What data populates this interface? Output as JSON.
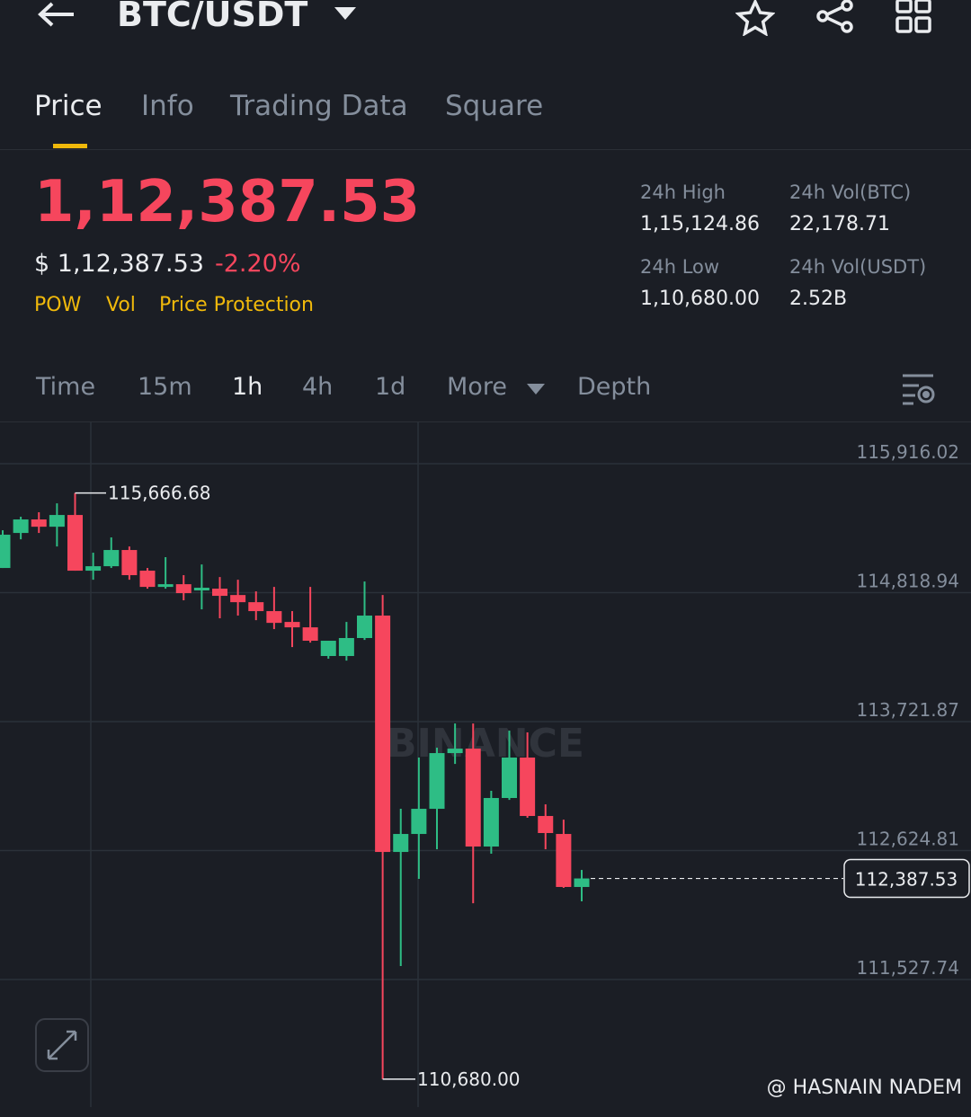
{
  "header": {
    "title": "BTC/USDT"
  },
  "tabs": [
    "Price",
    "Info",
    "Trading Data",
    "Square"
  ],
  "price": {
    "last": "1,12,387.53",
    "usd": "$ 1,12,387.53",
    "change": "-2.20%"
  },
  "tags": [
    "POW",
    "Vol",
    "Price Protection"
  ],
  "stats": [
    {
      "label": "24h High",
      "value": "1,15,124.86"
    },
    {
      "label": "24h Vol(BTC)",
      "value": "22,178.71"
    },
    {
      "label": "24h Low",
      "value": "1,10,680.00"
    },
    {
      "label": "24h Vol(USDT)",
      "value": "2.52B"
    }
  ],
  "intervals": [
    "Time",
    "15m",
    "1h",
    "4h",
    "1d",
    "More",
    "Depth"
  ],
  "chart_data": {
    "type": "candlestick",
    "open": [
      115029,
      115327,
      115442,
      115380,
      115480,
      115006,
      115044,
      115182,
      115006,
      114868,
      114891,
      114838,
      114853,
      114799,
      114738,
      114662,
      114570,
      114524,
      114280,
      114280,
      114433,
      114624,
      112613,
      112766,
      112980,
      113454,
      113492,
      112659,
      113072,
      113416,
      112919,
      112766,
      112315
    ],
    "high": [
      115350,
      115465,
      115503,
      115579,
      115666.68,
      115159,
      115289,
      115212,
      115029,
      115121,
      114968,
      115059,
      114952,
      114929,
      114830,
      114868,
      114662,
      114868,
      114410,
      114570,
      114914,
      114799,
      112980,
      113416,
      113500,
      113706,
      113706,
      113133,
      113645,
      113630,
      113018,
      112888,
      112460
    ],
    "low": [
      115029,
      115273,
      115327,
      115212,
      115006,
      114929,
      115029,
      114929,
      114853,
      114853,
      114754,
      114677,
      114601,
      114624,
      114585,
      114509,
      114356,
      114394,
      114257,
      114241,
      114417,
      110680,
      111642,
      112384,
      112636,
      113362,
      112177,
      112598,
      113056,
      112904,
      112636,
      112308,
      112193
    ],
    "close": [
      115312,
      115442,
      115380,
      115480,
      115006,
      115044,
      115182,
      114968,
      114868,
      114891,
      114815,
      114861,
      114792,
      114738,
      114662,
      114562,
      114524,
      114410,
      114410,
      114433,
      114624,
      112613,
      112766,
      112980,
      113454,
      113492,
      112659,
      113072,
      113416,
      112919,
      112774,
      112315,
      112387.53
    ],
    "up_color": "#2ebd85",
    "down_color": "#f6465d",
    "ylim": [
      110442,
      116268
    ],
    "yticks": [
      {
        "value": 115916.02,
        "label": "115,916.02"
      },
      {
        "value": 114818.94,
        "label": "114,818.94"
      },
      {
        "value": 113721.87,
        "label": "113,721.87"
      },
      {
        "value": 112624.81,
        "label": "112,624.81"
      },
      {
        "value": 111527.74,
        "label": "111,527.74"
      }
    ],
    "grid": true,
    "max_label": {
      "value": 115666.68,
      "label": "115,666.68"
    },
    "min_label": {
      "value": 110680.0,
      "label": "110,680.00"
    },
    "last_price": {
      "value": 112387.53,
      "label": "112,387.53"
    },
    "watermark": "BINANCE"
  },
  "credit": "@ HASNAIN NADEM"
}
